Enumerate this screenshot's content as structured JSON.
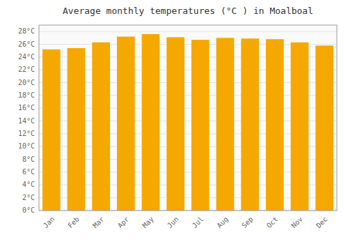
{
  "chart_data": {
    "type": "bar",
    "title": "Average monthly temperatures (°C ) in Moalboal",
    "categories": [
      "Jan",
      "Feb",
      "Mar",
      "Apr",
      "May",
      "Jun",
      "Jul",
      "Aug",
      "Sep",
      "Oct",
      "Nov",
      "Dec"
    ],
    "values": [
      25.2,
      25.4,
      26.3,
      27.2,
      27.6,
      27.1,
      26.7,
      27.0,
      26.9,
      26.8,
      26.3,
      25.8
    ],
    "color": "#F5A800",
    "ylim": [
      0,
      29
    ],
    "yticks": [
      {
        "value": 0,
        "label": "0°C"
      },
      {
        "value": 2,
        "label": "2°C"
      },
      {
        "value": 4,
        "label": "4°C"
      },
      {
        "value": 6,
        "label": "6°C"
      },
      {
        "value": 8,
        "label": "8°C"
      },
      {
        "value": 10,
        "label": "10°C"
      },
      {
        "value": 12,
        "label": "12°C"
      },
      {
        "value": 14,
        "label": "14°C"
      },
      {
        "value": 16,
        "label": "16°C"
      },
      {
        "value": 18,
        "label": "18°C"
      },
      {
        "value": 20,
        "label": "20°C"
      },
      {
        "value": 22,
        "label": "22°C"
      },
      {
        "value": 24,
        "label": "24°C"
      },
      {
        "value": 26,
        "label": "26°C"
      },
      {
        "value": 28,
        "label": "28°C"
      }
    ],
    "grid": true
  }
}
